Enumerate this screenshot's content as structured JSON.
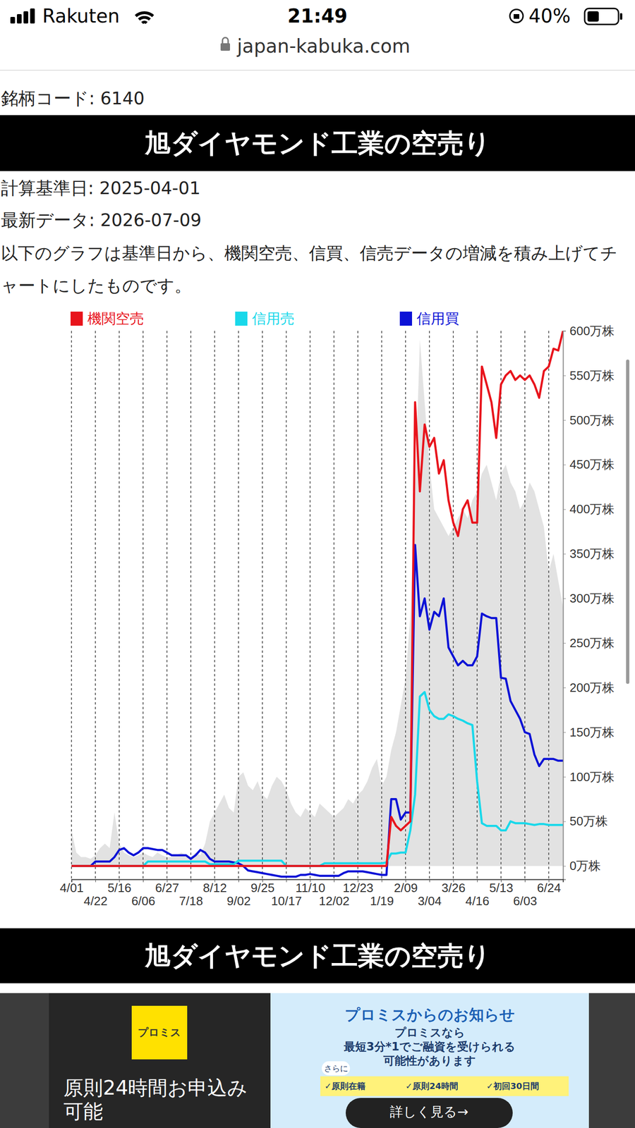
{
  "page": {
    "status_bar": {
      "carrier": "Rakuten",
      "time": "21:49",
      "battery": "40%"
    },
    "url": "japan-kabuka.com",
    "code_line": "銘柄コード: 6140",
    "banner": "旭ダイヤモンド工業の空売り",
    "base_date": "計算基準日: 2025-04-01",
    "latest": "最新データ: 2026-07-09",
    "description": "以下のグラフは基準日から、機関空売、信買、信売データの増減を積み上げてチャートにしたものです。",
    "banner2": "旭ダイヤモンド工業の空売り",
    "ad": {
      "logo": "プロミス",
      "left_text": "原則24時間お申込み可能",
      "heading": "プロミスからのお知らせ",
      "lines": [
        "プロミスなら",
        "最短3分*1でご融資を受けられる",
        "可能性があります"
      ],
      "extra": "さらに",
      "checks": [
        "✓原則在籍",
        "✓原則24時間",
        "✓初回30日間"
      ],
      "button": "詳しく見る→"
    }
  },
  "chart_data": {
    "type": "line",
    "categories": [
      "4/01",
      null,
      null,
      null,
      null,
      "4/22",
      null,
      null,
      null,
      null,
      "5/16",
      null,
      null,
      null,
      null,
      "6/06",
      null,
      null,
      null,
      null,
      "6/27",
      null,
      null,
      null,
      null,
      "7/18",
      null,
      null,
      null,
      null,
      "8/12",
      null,
      null,
      null,
      null,
      "9/02",
      null,
      null,
      null,
      null,
      "9/25",
      null,
      null,
      null,
      null,
      "10/17",
      null,
      null,
      null,
      null,
      "11/10",
      null,
      null,
      null,
      null,
      "12/02",
      null,
      null,
      null,
      null,
      "12/23",
      null,
      null,
      null,
      null,
      "1/19",
      null,
      null,
      null,
      null,
      "2/09",
      null,
      null,
      null,
      null,
      "3/04",
      null,
      null,
      null,
      null,
      "3/26",
      null,
      null,
      null,
      null,
      "4/16",
      null,
      null,
      null,
      null,
      "5/13",
      null,
      null,
      null,
      null,
      "6/03",
      null,
      null,
      null,
      null,
      "6/24",
      null,
      null,
      null
    ],
    "series": [
      {
        "name": "機関空売",
        "color": "#e8141c",
        "values": [
          0,
          0,
          0,
          0,
          0,
          0,
          0,
          0,
          0,
          0,
          0,
          0,
          0,
          0,
          0,
          0,
          0,
          0,
          0,
          0,
          0,
          0,
          0,
          0,
          0,
          0,
          0,
          0,
          0,
          0,
          0,
          0,
          0,
          0,
          0,
          0,
          0,
          0,
          0,
          0,
          0,
          0,
          0,
          0,
          0,
          0,
          0,
          0,
          0,
          0,
          0,
          0,
          0,
          0,
          0,
          0,
          0,
          0,
          0,
          0,
          0,
          0,
          0,
          0,
          0,
          0,
          0,
          55,
          45,
          40,
          45,
          50,
          520,
          420,
          495,
          470,
          480,
          440,
          455,
          410,
          385,
          370,
          400,
          410,
          385,
          385,
          560,
          540,
          520,
          480,
          540,
          550,
          555,
          545,
          550,
          545,
          550,
          540,
          525,
          555,
          560,
          580,
          578,
          600
        ]
      },
      {
        "name": "信用売",
        "color": "#19d8ea",
        "values": [
          0,
          0,
          0,
          0,
          0,
          0,
          0,
          0,
          0,
          0,
          0,
          0,
          0,
          0,
          0,
          0,
          5,
          5,
          5,
          5,
          5,
          5,
          5,
          5,
          5,
          5,
          5,
          5,
          5,
          2,
          2,
          2,
          2,
          2,
          2,
          6,
          6,
          6,
          6,
          6,
          6,
          6,
          6,
          6,
          6,
          0,
          0,
          0,
          0,
          0,
          0,
          0,
          0,
          3,
          3,
          3,
          3,
          3,
          3,
          3,
          3,
          3,
          3,
          3,
          3,
          3,
          4,
          14,
          14,
          15,
          15,
          40,
          80,
          190,
          195,
          175,
          168,
          165,
          165,
          170,
          168,
          165,
          163,
          160,
          158,
          95,
          48,
          45,
          45,
          45,
          40,
          40,
          50,
          48,
          48,
          48,
          47,
          46,
          47,
          47,
          46,
          46,
          46,
          46
        ]
      },
      {
        "name": "信用買",
        "color": "#0c12d6",
        "values": [
          0,
          0,
          0,
          0,
          0,
          5,
          5,
          5,
          5,
          10,
          18,
          20,
          15,
          12,
          15,
          20,
          20,
          19,
          18,
          18,
          15,
          12,
          12,
          12,
          12,
          8,
          12,
          18,
          15,
          8,
          5,
          5,
          5,
          5,
          4,
          3,
          0,
          -5,
          -6,
          -7,
          -8,
          -9,
          -10,
          -11,
          -12,
          -12,
          -12,
          -12,
          -10,
          -10,
          -9,
          -10,
          -11,
          -11,
          -11,
          -11,
          -11,
          -8,
          -6,
          -6,
          -6,
          -6,
          -7,
          -8,
          -9,
          -10,
          -10,
          75,
          75,
          52,
          60,
          60,
          360,
          280,
          300,
          265,
          285,
          280,
          300,
          245,
          235,
          225,
          230,
          225,
          225,
          235,
          283,
          280,
          278,
          278,
          211,
          210,
          185,
          175,
          165,
          150,
          148,
          125,
          112,
          120,
          120,
          120,
          118,
          118
        ]
      },
      {
        "type": "area",
        "color": "#e2e2e2",
        "values": [
          40,
          15,
          10,
          10,
          8,
          12,
          20,
          25,
          20,
          60,
          25,
          15,
          12,
          10,
          12,
          15,
          12,
          10,
          15,
          12,
          10,
          10,
          12,
          15,
          12,
          10,
          15,
          12,
          25,
          50,
          60,
          70,
          80,
          65,
          60,
          100,
          105,
          90,
          85,
          95,
          80,
          75,
          90,
          100,
          95,
          85,
          70,
          60,
          55,
          65,
          60,
          55,
          70,
          65,
          60,
          55,
          60,
          65,
          75,
          70,
          80,
          85,
          95,
          110,
          120,
          90,
          100,
          130,
          150,
          180,
          210,
          280,
          420,
          590,
          520,
          450,
          400,
          390,
          380,
          370,
          380,
          390,
          400,
          390,
          410,
          420,
          440,
          450,
          430,
          410,
          440,
          450,
          430,
          420,
          400,
          410,
          430,
          420,
          400,
          380,
          330,
          350,
          320,
          290
        ]
      }
    ],
    "ylim": [
      -15,
      600
    ],
    "yticks": [
      {
        "value": 0,
        "label": "0万株"
      },
      {
        "value": 50,
        "label": "50万株"
      },
      {
        "value": 100,
        "label": "100万株"
      },
      {
        "value": 150,
        "label": "150万株"
      },
      {
        "value": 200,
        "label": "200万株"
      },
      {
        "value": 250,
        "label": "250万株"
      },
      {
        "value": 300,
        "label": "300万株"
      },
      {
        "value": 350,
        "label": "350万株"
      },
      {
        "value": 400,
        "label": "400万株"
      },
      {
        "value": 450,
        "label": "450万株"
      },
      {
        "value": 500,
        "label": "500万株"
      },
      {
        "value": 550,
        "label": "550万株"
      },
      {
        "value": 600,
        "label": "600万株"
      }
    ],
    "grid": "x",
    "legend": "top"
  }
}
